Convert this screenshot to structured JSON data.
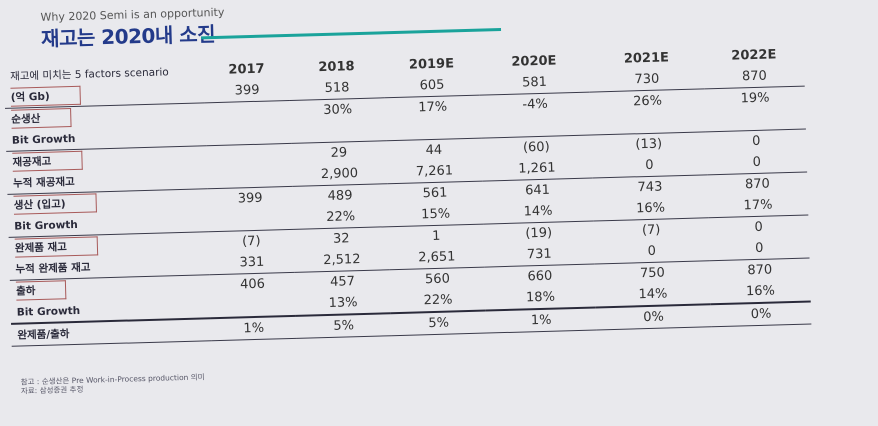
{
  "header": {
    "subtitle": "Why 2020 Semi is an opportunity",
    "title": "재고는 2020내 소진"
  },
  "table": {
    "scenario_label": "재고에 미치는 5 factors scenario",
    "years": [
      "2017",
      "2018",
      "2019E",
      "2020E",
      "2021E",
      "2022E"
    ],
    "rows": [
      {
        "label": "(억 Gb)",
        "values": [
          "399",
          "518",
          "605",
          "581",
          "730",
          "870"
        ]
      },
      {
        "label": "순생산",
        "values": [
          "",
          "30%",
          "17%",
          "-4%",
          "26%",
          "19%"
        ]
      },
      {
        "label": "Bit Growth",
        "values": [
          "",
          "",
          "",
          "",
          "",
          ""
        ]
      },
      {
        "label": "재공재고",
        "values": [
          "",
          "29",
          "44",
          "(60)",
          "(13)",
          "0"
        ]
      },
      {
        "label": "누적 재공재고",
        "values": [
          "",
          "2,900",
          "7,261",
          "1,261",
          "0",
          "0"
        ]
      },
      {
        "label": "생산 (입고)",
        "values": [
          "399",
          "489",
          "561",
          "641",
          "743",
          "870"
        ]
      },
      {
        "label": "Bit Growth",
        "values": [
          "",
          "22%",
          "15%",
          "14%",
          "16%",
          "17%"
        ]
      },
      {
        "label": "완제품 재고",
        "values": [
          "(7)",
          "32",
          "1",
          "(19)",
          "(7)",
          "0"
        ]
      },
      {
        "label": "누적 완제품 재고",
        "values": [
          "331",
          "2,512",
          "2,651",
          "731",
          "0",
          "0"
        ]
      },
      {
        "label": "출하",
        "values": [
          "406",
          "457",
          "560",
          "660",
          "750",
          "870"
        ]
      },
      {
        "label": "Bit Growth",
        "values": [
          "",
          "13%",
          "22%",
          "18%",
          "14%",
          "16%"
        ]
      },
      {
        "label": "완제품/출하",
        "values": [
          "1%",
          "5%",
          "5%",
          "1%",
          "0%",
          "0%"
        ]
      }
    ]
  },
  "footnote": {
    "line1": "참고 : 순생산은 Pre Work-in-Process production 의미",
    "line2": "자료: 삼성증권 추정"
  }
}
